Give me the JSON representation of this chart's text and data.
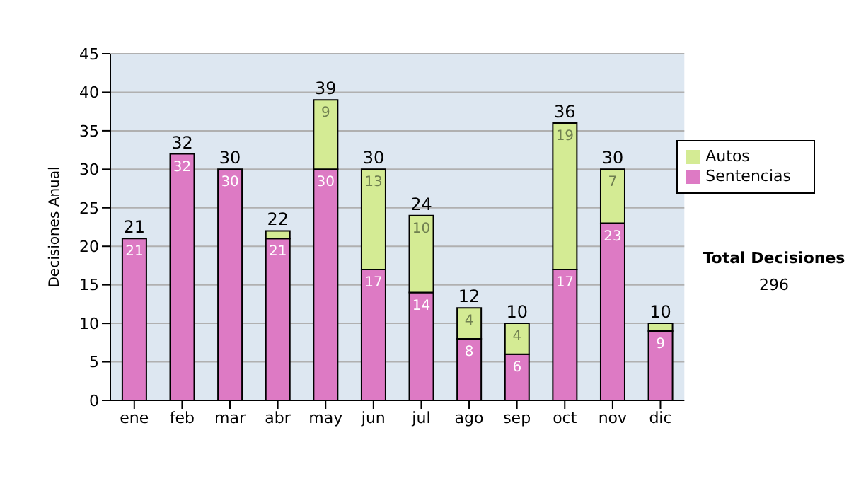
{
  "chart_data": {
    "type": "bar",
    "ylabel": "Decisiones Anual",
    "categories": [
      "ene",
      "feb",
      "mar",
      "abr",
      "may",
      "jun",
      "jul",
      "ago",
      "sep",
      "oct",
      "nov",
      "dic"
    ],
    "stacked": true,
    "ylim": [
      0,
      45
    ],
    "yticks": [
      0,
      5,
      10,
      15,
      20,
      25,
      30,
      35,
      40,
      45
    ],
    "grid": "y",
    "legend": "right",
    "series": [
      {
        "name": "Sentencias",
        "color": "#dd7ac4",
        "values": [
          21,
          32,
          30,
          21,
          30,
          17,
          14,
          8,
          6,
          17,
          23,
          9
        ],
        "value_labels": [
          "21",
          "32",
          "30",
          "21",
          "30",
          "17",
          "14",
          "8",
          "6",
          "17",
          "23",
          "9"
        ]
      },
      {
        "name": "Autos",
        "color": "#d4eb94",
        "values": [
          0,
          0,
          0,
          1,
          9,
          13,
          10,
          4,
          4,
          19,
          7,
          1
        ],
        "value_labels": [
          null,
          null,
          null,
          null,
          "9",
          "13",
          "10",
          "4",
          "4",
          "19",
          "7",
          null
        ]
      }
    ],
    "totals": [
      "21",
      "32",
      "30",
      "22",
      "39",
      "30",
      "24",
      "12",
      "10",
      "36",
      "30",
      "10"
    ],
    "annotations": [
      "Total Decisiones",
      "296"
    ]
  }
}
